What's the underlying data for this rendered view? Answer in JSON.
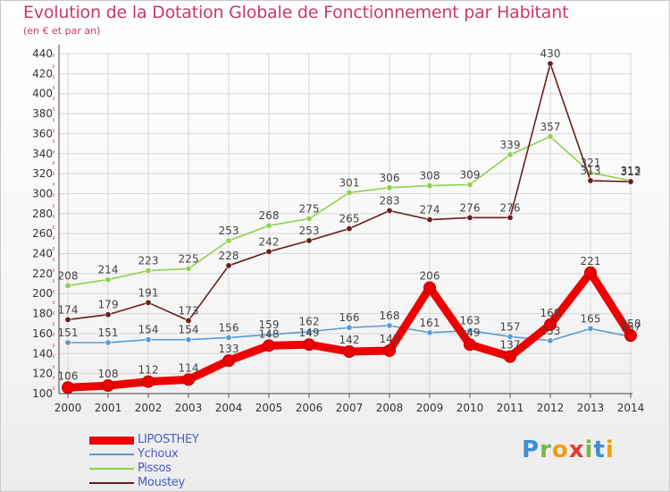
{
  "header": {
    "title": "Evolution de la Dotation Globale de Fonctionnement par Habitant",
    "subtitle": "(en € et par an)"
  },
  "brand": {
    "letters": [
      "P",
      "r",
      "o",
      "x",
      "i",
      "t",
      "i"
    ],
    "colors": [
      "#3b8fd6",
      "#7cb342",
      "#f39c12",
      "#e53935",
      "#7cb342",
      "#3b8fd6",
      "#f39c12"
    ]
  },
  "chart_data": {
    "type": "line",
    "title": "Evolution de la Dotation Globale de Fonctionnement par Habitant",
    "subtitle": "(en € et par an)",
    "xlabel": "",
    "ylabel": "",
    "x": [
      "2000",
      "2001",
      "2002",
      "2003",
      "2004",
      "2005",
      "2006",
      "2007",
      "2008",
      "2009",
      "2010",
      "2011",
      "2012",
      "2013",
      "2014"
    ],
    "ylim": [
      100,
      440
    ],
    "ytick_step": 20,
    "grid": true,
    "legend_position": "bottom-left",
    "series": [
      {
        "name": "LIPOSTHEY",
        "color": "#ee0000",
        "emphasis": true,
        "values": [
          106,
          108,
          112,
          114,
          133,
          148,
          149,
          142,
          143,
          206,
          149,
          137,
          169,
          221,
          158
        ]
      },
      {
        "name": "Ychoux",
        "color": "#5b9bd5",
        "values": [
          151,
          151,
          154,
          154,
          156,
          159,
          162,
          166,
          168,
          161,
          163,
          157,
          153,
          165,
          157
        ]
      },
      {
        "name": "Pissos",
        "color": "#8fd14f",
        "values": [
          208,
          214,
          223,
          225,
          253,
          268,
          275,
          301,
          306,
          308,
          309,
          339,
          357,
          321,
          313
        ]
      },
      {
        "name": "Moustey",
        "color": "#6b1c1c",
        "values": [
          174,
          179,
          191,
          173,
          228,
          242,
          253,
          265,
          283,
          274,
          276,
          276,
          430,
          313,
          312
        ]
      }
    ]
  }
}
